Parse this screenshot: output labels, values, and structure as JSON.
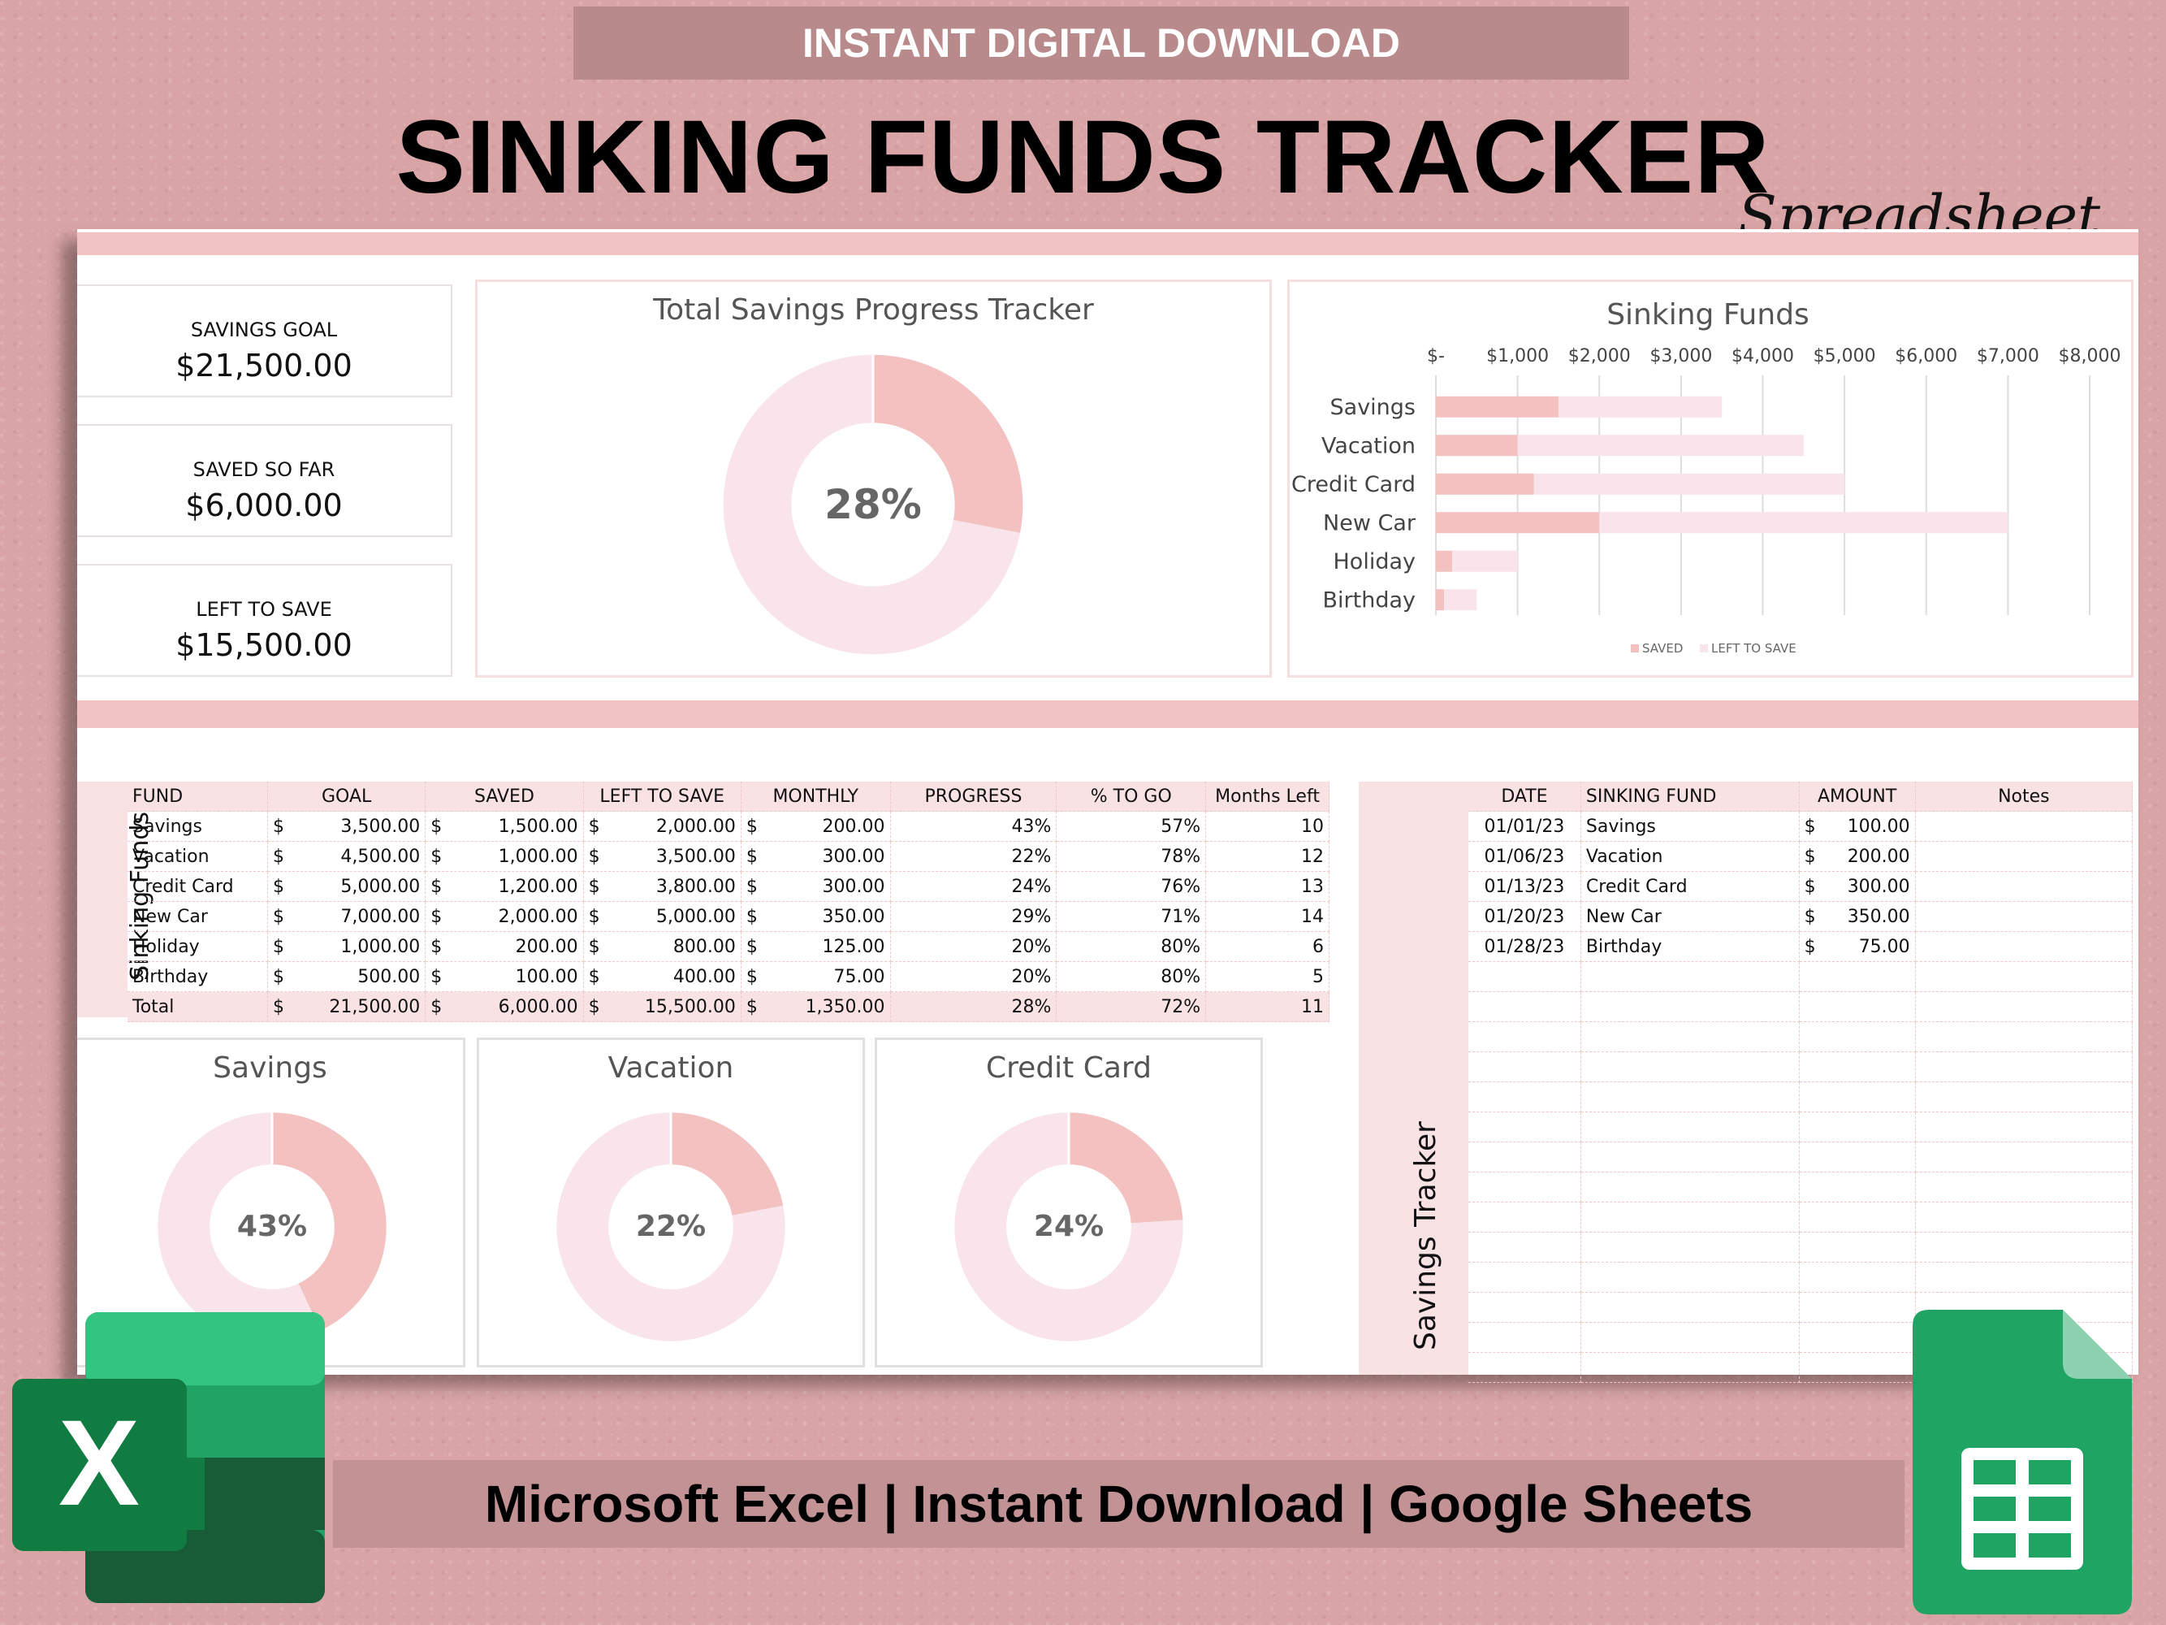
{
  "banner": {
    "top": "INSTANT DIGITAL DOWNLOAD",
    "title": "SINKING FUNDS TRACKER",
    "subtitle": "Spreadsheet",
    "bottom": "Microsoft Excel | Instant Download | Google Sheets"
  },
  "kpis": [
    {
      "label": "SAVINGS GOAL",
      "value": "$21,500.00"
    },
    {
      "label": "SAVED SO FAR",
      "value": "$6,000.00"
    },
    {
      "label": "LEFT TO SAVE",
      "value": "$15,500.00"
    }
  ],
  "total_progress": {
    "title": "Total Savings Progress Tracker",
    "percent_label": "28%",
    "fraction": 0.28
  },
  "sinking_chart": {
    "chart_data": {
      "type": "bar",
      "title": "Sinking Funds",
      "categories": [
        "Savings",
        "Vacation",
        "Credit Card",
        "New Car",
        "Holiday",
        "Birthday"
      ],
      "series": [
        {
          "name": "SAVED",
          "values": [
            1500,
            1000,
            1200,
            2000,
            200,
            100
          ]
        },
        {
          "name": "LEFT TO SAVE",
          "values": [
            2000,
            3500,
            3800,
            5000,
            800,
            400
          ]
        }
      ],
      "stacked": true,
      "orientation": "horizontal",
      "xlim": [
        0,
        8000
      ],
      "x_tick_labels": [
        "$-",
        "$1,000",
        "$2,000",
        "$3,000",
        "$4,000",
        "$5,000",
        "$6,000",
        "$7,000",
        "$8,000"
      ],
      "legend": "bottom",
      "grid": true
    }
  },
  "funds_table": {
    "side_label": "Sinking Funds",
    "headers": [
      "FUND",
      "GOAL",
      "SAVED",
      "LEFT TO SAVE",
      "MONTHLY",
      "PROGRESS",
      "% TO GO",
      "Months Left"
    ],
    "currency": "$",
    "rows": [
      [
        "Savings",
        "3,500.00",
        "1,500.00",
        "2,000.00",
        "200.00",
        "43%",
        "57%",
        "10"
      ],
      [
        "Vacation",
        "4,500.00",
        "1,000.00",
        "3,500.00",
        "300.00",
        "22%",
        "78%",
        "12"
      ],
      [
        "Credit Card",
        "5,000.00",
        "1,200.00",
        "3,800.00",
        "300.00",
        "24%",
        "76%",
        "13"
      ],
      [
        "New Car",
        "7,000.00",
        "2,000.00",
        "5,000.00",
        "350.00",
        "29%",
        "71%",
        "14"
      ],
      [
        "Holiday",
        "1,000.00",
        "200.00",
        "800.00",
        "125.00",
        "20%",
        "80%",
        "6"
      ],
      [
        "Birthday",
        "500.00",
        "100.00",
        "400.00",
        "75.00",
        "20%",
        "80%",
        "5"
      ],
      [
        "Total",
        "21,500.00",
        "6,000.00",
        "15,500.00",
        "1,350.00",
        "28%",
        "72%",
        "11"
      ]
    ]
  },
  "fund_donuts": [
    {
      "title": "Savings",
      "percent_label": "43%",
      "fraction": 0.43
    },
    {
      "title": "Vacation",
      "percent_label": "22%",
      "fraction": 0.22
    },
    {
      "title": "Credit Card",
      "percent_label": "24%",
      "fraction": 0.24
    }
  ],
  "tracker": {
    "side_label": "Savings Tracker",
    "headers": [
      "DATE",
      "SINKING FUND",
      "AMOUNT",
      "Notes"
    ],
    "currency": "$",
    "rows": [
      [
        "01/01/23",
        "Savings",
        "100.00",
        ""
      ],
      [
        "01/06/23",
        "Vacation",
        "200.00",
        ""
      ],
      [
        "01/13/23",
        "Credit Card",
        "300.00",
        ""
      ],
      [
        "01/20/23",
        "New Car",
        "350.00",
        ""
      ],
      [
        "01/28/23",
        "Birthday",
        "75.00",
        ""
      ]
    ],
    "blank_rows": 14
  },
  "colors": {
    "saved": "#f4c1c1",
    "left": "#f8e4ea",
    "accent": "#f2c3c4",
    "excel_green": "#1f7a45",
    "sheets_green": "#1fa463"
  },
  "icons": {
    "excel": "excel-logo-icon",
    "sheets": "google-sheets-logo-icon"
  }
}
